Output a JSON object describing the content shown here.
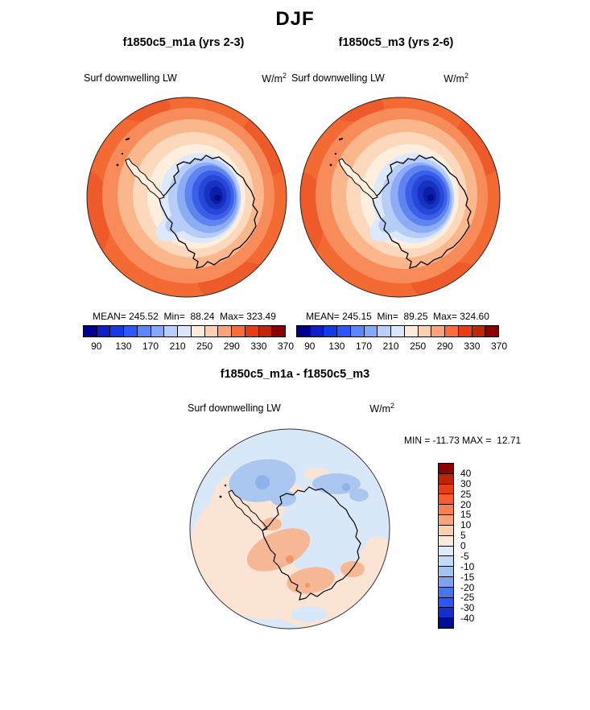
{
  "header": {
    "title": "DJF"
  },
  "panels": [
    {
      "subtitle": "f1850c5_m1a (yrs 2-3)",
      "field": "Surf downwelling LW",
      "units_base": "W/m",
      "units_exp": "2",
      "stats_text": "MEAN= 245.52  Min=  88.24  Max= 323.49"
    },
    {
      "subtitle": "f1850c5_m3 (yrs 2-6)",
      "field": "Surf downwelling LW",
      "units_base": "W/m",
      "units_exp": "2",
      "stats_text": "MEAN= 245.15  Min=  89.25  Max= 324.60"
    },
    {
      "subtitle": "f1850c5_m1a - f1850c5_m3",
      "field": "Surf downwelling LW",
      "units_base": "W/m",
      "units_exp": "2",
      "minmax_text": "MIN = -11.73 MAX =  12.71"
    }
  ],
  "chart_data": [
    {
      "type": "contour-map",
      "title": "f1850c5_m1a (yrs 2-3)",
      "season": "DJF",
      "field": "Surf downwelling LW",
      "units": "W/m^2",
      "projection": "south polar stereographic",
      "region": "Antarctica",
      "stats": {
        "mean": 245.52,
        "min": 88.24,
        "max": 323.49
      },
      "colorbar": {
        "orientation": "horizontal",
        "value_range": [
          70,
          370
        ],
        "contour_interval": 20,
        "levels": [
          90,
          130,
          170,
          210,
          250,
          290,
          330,
          370
        ],
        "tick_labels": [
          "90",
          "130",
          "170",
          "210",
          "250",
          "290",
          "330",
          "370"
        ],
        "tick_boundaries": [
          1,
          3,
          5,
          7,
          9,
          11,
          13,
          15
        ],
        "colors": [
          "#00008f",
          "#0c1fc8",
          "#133ae8",
          "#2a57ff",
          "#5c85ff",
          "#84a8fa",
          "#b7cffa",
          "#d9e7fc",
          "#fdead8",
          "#fccfae",
          "#faa378",
          "#fb6c3a",
          "#e83c12",
          "#c32605",
          "#8c0000"
        ]
      }
    },
    {
      "type": "contour-map",
      "title": "f1850c5_m3 (yrs 2-6)",
      "season": "DJF",
      "field": "Surf downwelling LW",
      "units": "W/m^2",
      "projection": "south polar stereographic",
      "region": "Antarctica",
      "stats": {
        "mean": 245.15,
        "min": 89.25,
        "max": 324.6
      },
      "colorbar": {
        "orientation": "horizontal",
        "value_range": [
          70,
          370
        ],
        "contour_interval": 20,
        "levels": [
          90,
          130,
          170,
          210,
          250,
          290,
          330,
          370
        ],
        "tick_labels": [
          "90",
          "130",
          "170",
          "210",
          "250",
          "290",
          "330",
          "370"
        ],
        "tick_boundaries": [
          1,
          3,
          5,
          7,
          9,
          11,
          13,
          15
        ],
        "colors": [
          "#00008f",
          "#0c1fc8",
          "#133ae8",
          "#2a57ff",
          "#5c85ff",
          "#84a8fa",
          "#b7cffa",
          "#d9e7fc",
          "#fdead8",
          "#fccfae",
          "#faa378",
          "#fb6c3a",
          "#e83c12",
          "#c32605",
          "#8c0000"
        ]
      }
    },
    {
      "type": "contour-map-difference",
      "title": "f1850c5_m1a - f1850c5_m3",
      "season": "DJF",
      "field": "Surf downwelling LW",
      "units": "W/m^2",
      "projection": "south polar stereographic",
      "region": "Antarctica",
      "stats": {
        "min": -11.73,
        "max": 12.71
      },
      "colorbar": {
        "orientation": "vertical",
        "levels": [
          40,
          30,
          25,
          20,
          15,
          10,
          5,
          0,
          -5,
          -10,
          -15,
          -20,
          -25,
          -30,
          -40
        ],
        "tick_labels": [
          "40",
          "30",
          "25",
          "20",
          "15",
          "10",
          "5",
          "0",
          "-5",
          "-10",
          "-15",
          "-20",
          "-25",
          "-30",
          "-40"
        ],
        "tick_boundaries": [
          1,
          2,
          3,
          4,
          5,
          6,
          7,
          8,
          9,
          10,
          11,
          12,
          13,
          14,
          15
        ],
        "colors": [
          "#8c0000",
          "#c02405",
          "#e83c12",
          "#fb5a2a",
          "#f98052",
          "#faa378",
          "#fccfae",
          "#fdead8",
          "#dcebfa",
          "#c3d9f5",
          "#a4c4f0",
          "#7da2f0",
          "#4c74ea",
          "#2a57ff",
          "#1330cf",
          "#000d96"
        ]
      }
    }
  ]
}
